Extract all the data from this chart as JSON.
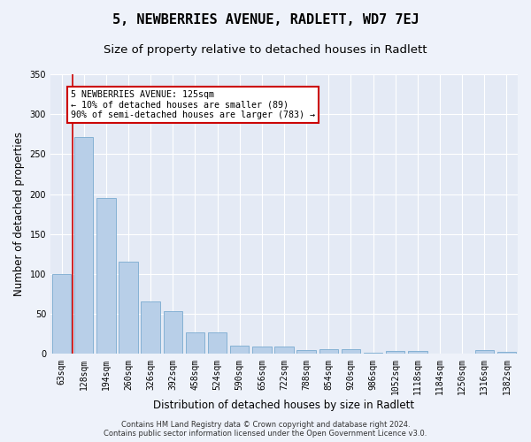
{
  "title": "5, NEWBERRIES AVENUE, RADLETT, WD7 7EJ",
  "subtitle": "Size of property relative to detached houses in Radlett",
  "xlabel": "Distribution of detached houses by size in Radlett",
  "ylabel": "Number of detached properties",
  "categories": [
    "63sqm",
    "128sqm",
    "194sqm",
    "260sqm",
    "326sqm",
    "392sqm",
    "458sqm",
    "524sqm",
    "590sqm",
    "656sqm",
    "722sqm",
    "788sqm",
    "854sqm",
    "920sqm",
    "986sqm",
    "1052sqm",
    "1118sqm",
    "1184sqm",
    "1250sqm",
    "1316sqm",
    "1382sqm"
  ],
  "values": [
    100,
    272,
    195,
    115,
    66,
    54,
    27,
    27,
    11,
    9,
    9,
    5,
    6,
    6,
    2,
    4,
    4,
    1,
    1,
    5,
    3
  ],
  "bar_color": "#b8cfe8",
  "bar_edge_color": "#7aaad0",
  "annotation_text": "5 NEWBERRIES AVENUE: 125sqm\n← 10% of detached houses are smaller (89)\n90% of semi-detached houses are larger (783) →",
  "annotation_box_color": "#ffffff",
  "annotation_box_edge_color": "#cc0000",
  "background_color": "#eef2fa",
  "plot_bg_color": "#e4eaf5",
  "grid_color": "#ffffff",
  "title_fontsize": 11,
  "subtitle_fontsize": 9.5,
  "axis_label_fontsize": 8.5,
  "tick_fontsize": 7,
  "footer_text": "Contains HM Land Registry data © Crown copyright and database right 2024.\nContains public sector information licensed under the Open Government Licence v3.0.",
  "ylim": [
    0,
    350
  ],
  "yticks": [
    0,
    50,
    100,
    150,
    200,
    250,
    300,
    350
  ]
}
